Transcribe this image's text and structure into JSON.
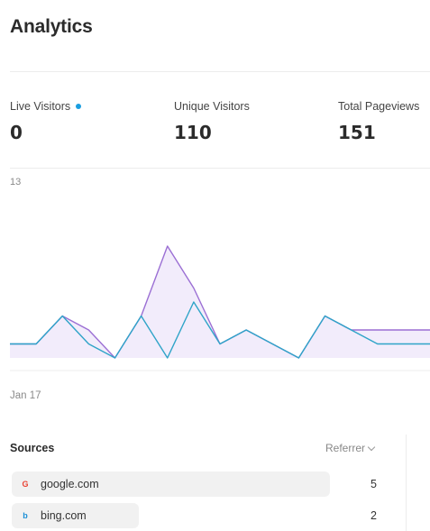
{
  "page": {
    "title": "Analytics"
  },
  "stats": {
    "live": {
      "label": "Live Visitors",
      "value": "0",
      "indicator_color": "#1a9ee0"
    },
    "unique": {
      "label": "Unique Visitors",
      "value": "110"
    },
    "pageviews": {
      "label": "Total Pageviews",
      "value": "151"
    }
  },
  "chart_data": {
    "type": "area",
    "y_max_label": "13",
    "x_start_label": "Jan 17",
    "ylim": [
      0,
      13
    ],
    "x": [
      0,
      1,
      2,
      3,
      4,
      5,
      6,
      7,
      8,
      9,
      10,
      11,
      12,
      13,
      14,
      15,
      16
    ],
    "series": [
      {
        "values": [
          1,
          1,
          3,
          2,
          0,
          3,
          8,
          5,
          1,
          2,
          1,
          0,
          3,
          2,
          2,
          2,
          2
        ],
        "color": "#9b6fd4",
        "fill": "#ece4fa"
      },
      {
        "values": [
          1,
          1,
          3,
          1,
          0,
          3,
          0,
          4,
          1,
          2,
          1,
          0,
          3,
          2,
          1,
          1,
          1
        ],
        "color": "#2fa4c8"
      }
    ]
  },
  "sources": {
    "title": "Sources",
    "sort_label": "Referrer",
    "items": [
      {
        "name": "google.com",
        "count": "5",
        "icon": "google-icon",
        "fraction": 1.0
      },
      {
        "name": "bing.com",
        "count": "2",
        "icon": "bing-icon",
        "fraction": 0.4
      }
    ]
  }
}
